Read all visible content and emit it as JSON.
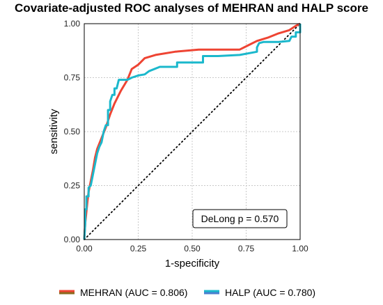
{
  "chart_data": {
    "type": "line",
    "title": "Covariate-adjusted ROC analyses of MEHRAN and HALP score",
    "xlabel": "1-specificity",
    "ylabel": "sensitivity",
    "xlim": [
      0,
      1
    ],
    "ylim": [
      0,
      1
    ],
    "xticks": [
      "0.00",
      "0.25",
      "0.50",
      "0.75",
      "1.00"
    ],
    "yticks": [
      "0.00",
      "0.25",
      "0.50",
      "0.75",
      "1.00"
    ],
    "grid": true,
    "legend_position": "bottom",
    "annotation": "DeLong p = 0.570",
    "reference_line": {
      "x": [
        0,
        1
      ],
      "y": [
        0,
        1
      ],
      "style": "dotted"
    },
    "series": [
      {
        "name": "MEHRAN (AUC = 0.806)",
        "color": "#ee4433",
        "legend_key_color": "#8b6b1f",
        "x": [
          0,
          0.005,
          0.01,
          0.015,
          0.02,
          0.03,
          0.04,
          0.05,
          0.06,
          0.08,
          0.1,
          0.12,
          0.14,
          0.17,
          0.2,
          0.22,
          0.25,
          0.28,
          0.33,
          0.42,
          0.53,
          0.65,
          0.72,
          0.76,
          0.8,
          0.85,
          0.9,
          0.95,
          0.98,
          1.0
        ],
        "y": [
          0,
          0.08,
          0.13,
          0.18,
          0.22,
          0.27,
          0.32,
          0.38,
          0.42,
          0.47,
          0.52,
          0.58,
          0.63,
          0.69,
          0.74,
          0.79,
          0.81,
          0.84,
          0.855,
          0.87,
          0.88,
          0.88,
          0.88,
          0.9,
          0.92,
          0.935,
          0.955,
          0.97,
          0.99,
          1.0
        ]
      },
      {
        "name": "HALP (AUC = 0.780)",
        "color": "#1bb8cc",
        "legend_key_color": "#4a7fcf",
        "x": [
          0,
          0.005,
          0.005,
          0.01,
          0.01,
          0.02,
          0.02,
          0.03,
          0.04,
          0.05,
          0.06,
          0.07,
          0.08,
          0.09,
          0.1,
          0.11,
          0.11,
          0.12,
          0.12,
          0.13,
          0.14,
          0.14,
          0.15,
          0.16,
          0.2,
          0.22,
          0.25,
          0.28,
          0.3,
          0.35,
          0.4,
          0.43,
          0.43,
          0.55,
          0.55,
          0.62,
          0.72,
          0.8,
          0.8,
          0.81,
          0.83,
          0.9,
          0.95,
          0.96,
          0.98,
          0.98,
          1.0,
          1.0
        ],
        "y": [
          0,
          0.08,
          0.14,
          0.14,
          0.2,
          0.2,
          0.24,
          0.25,
          0.3,
          0.35,
          0.4,
          0.43,
          0.45,
          0.5,
          0.53,
          0.53,
          0.6,
          0.6,
          0.64,
          0.67,
          0.67,
          0.7,
          0.7,
          0.74,
          0.74,
          0.75,
          0.76,
          0.765,
          0.78,
          0.8,
          0.8,
          0.8,
          0.82,
          0.82,
          0.85,
          0.85,
          0.855,
          0.87,
          0.89,
          0.91,
          0.915,
          0.915,
          0.92,
          0.94,
          0.94,
          0.96,
          0.96,
          1.0
        ]
      }
    ]
  }
}
